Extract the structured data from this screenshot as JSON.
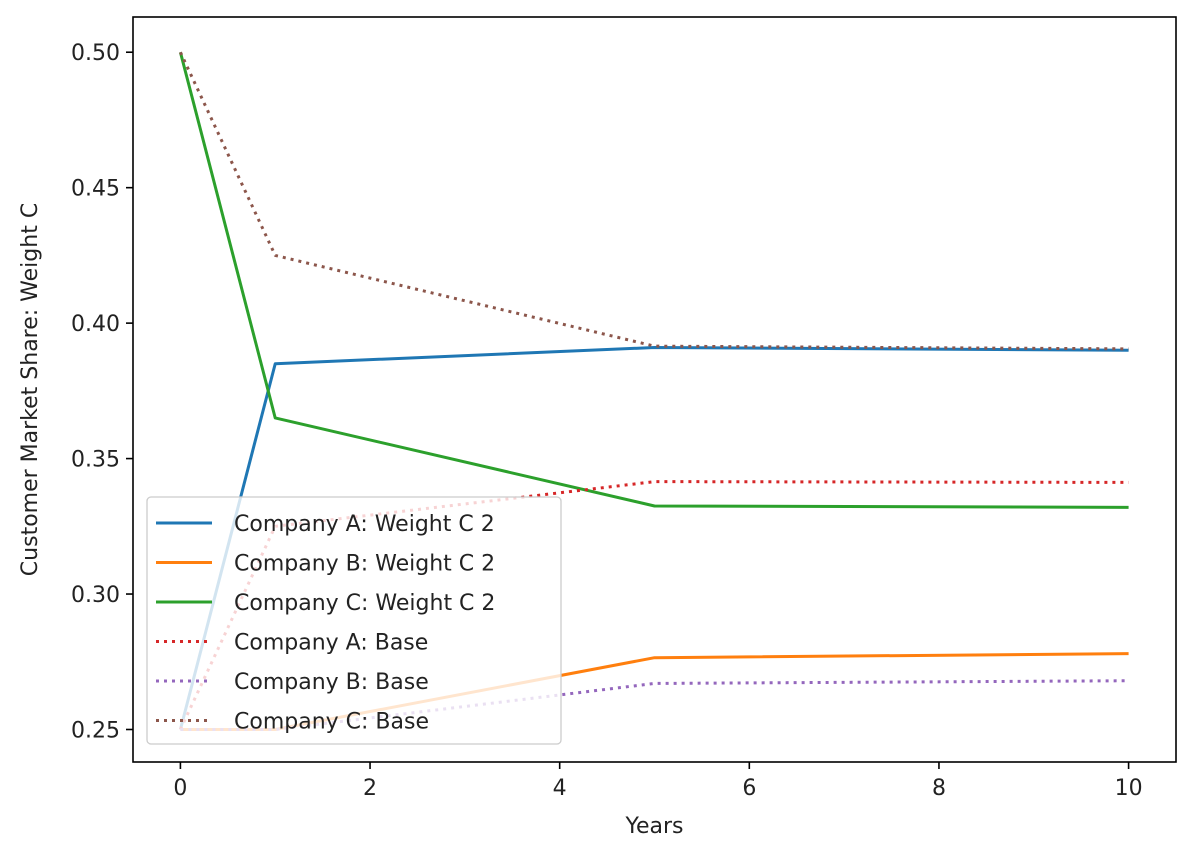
{
  "chart_data": {
    "type": "line",
    "title": "",
    "xlabel": "Years",
    "ylabel": "Customer Market Share: Weight C",
    "xlim": [
      -0.5,
      10.5
    ],
    "ylim": [
      0.238,
      0.513
    ],
    "xticks": [
      0,
      2,
      4,
      6,
      8,
      10
    ],
    "xtick_labels": [
      "0",
      "2",
      "4",
      "6",
      "8",
      "10"
    ],
    "yticks": [
      0.25,
      0.3,
      0.35,
      0.4,
      0.45,
      0.5
    ],
    "ytick_labels": [
      "0.25",
      "0.30",
      "0.35",
      "0.40",
      "0.45",
      "0.50"
    ],
    "grid": false,
    "legend_position": "lower-left",
    "x": [
      0,
      1,
      5,
      10
    ],
    "series": [
      {
        "name": "Company A: Weight C 2",
        "color": "#1f77b4",
        "style": "solid",
        "values": [
          0.25,
          0.385,
          0.391,
          0.39
        ]
      },
      {
        "name": "Company B: Weight C 2",
        "color": "#ff7f0e",
        "style": "solid",
        "values": [
          0.25,
          0.25,
          0.2765,
          0.278
        ]
      },
      {
        "name": "Company C: Weight C 2",
        "color": "#2ca02c",
        "style": "solid",
        "values": [
          0.5,
          0.365,
          0.3325,
          0.332
        ]
      },
      {
        "name": "Company A: Base",
        "color": "#d62728",
        "style": "dotted",
        "values": [
          0.25,
          0.325,
          0.3415,
          0.3412
        ]
      },
      {
        "name": "Company B: Base",
        "color": "#9467bd",
        "style": "dotted",
        "values": [
          0.25,
          0.25,
          0.267,
          0.268
        ]
      },
      {
        "name": "Company C: Base",
        "color": "#8c564b",
        "style": "dotted",
        "values": [
          0.5,
          0.425,
          0.3915,
          0.3905
        ]
      }
    ]
  }
}
